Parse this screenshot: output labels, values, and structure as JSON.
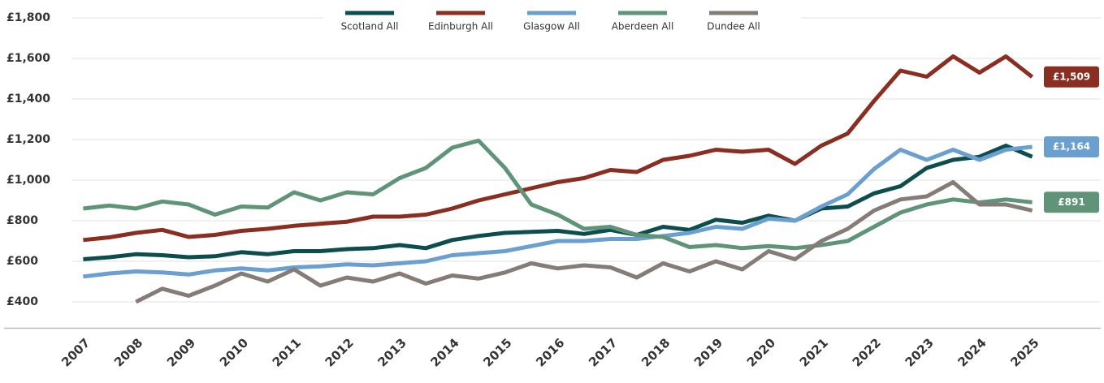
{
  "chart_data": {
    "type": "line",
    "x": [
      2007,
      2007.5,
      2008,
      2008.5,
      2009,
      2009.5,
      2010,
      2010.5,
      2011,
      2011.5,
      2012,
      2012.5,
      2013,
      2013.5,
      2014,
      2014.5,
      2015,
      2015.5,
      2016,
      2016.5,
      2017,
      2017.5,
      2018,
      2018.5,
      2019,
      2019.5,
      2020,
      2020.5,
      2021,
      2021.5,
      2022,
      2022.5,
      2023,
      2023.5,
      2024,
      2024.5,
      2025
    ],
    "series": [
      {
        "name": "Scotland All",
        "color": "#0d4d4d",
        "values": [
          610,
          620,
          635,
          630,
          620,
          625,
          645,
          635,
          650,
          650,
          660,
          665,
          680,
          665,
          705,
          725,
          740,
          745,
          750,
          735,
          755,
          730,
          770,
          755,
          805,
          790,
          825,
          800,
          860,
          870,
          935,
          970,
          1060,
          1100,
          1115,
          1170,
          1115
        ]
      },
      {
        "name": "Edinburgh All",
        "color": "#8b2e22",
        "end_label": "£1,509",
        "values": [
          705,
          718,
          740,
          755,
          720,
          730,
          750,
          760,
          775,
          785,
          795,
          820,
          820,
          830,
          860,
          900,
          930,
          960,
          990,
          1010,
          1050,
          1040,
          1100,
          1120,
          1150,
          1140,
          1150,
          1080,
          1170,
          1230,
          1390,
          1540,
          1510,
          1610,
          1530,
          1610,
          1509
        ]
      },
      {
        "name": "Glasgow All",
        "color": "#6a9fd0",
        "end_label": "£1,164",
        "values": [
          525,
          540,
          550,
          545,
          535,
          555,
          565,
          555,
          570,
          575,
          585,
          580,
          590,
          600,
          630,
          640,
          650,
          675,
          700,
          700,
          710,
          710,
          725,
          740,
          770,
          760,
          810,
          800,
          870,
          930,
          1055,
          1150,
          1100,
          1150,
          1100,
          1150,
          1164
        ]
      },
      {
        "name": "Aberdeen All",
        "color": "#5f9478",
        "end_label": "£891",
        "values": [
          860,
          875,
          860,
          895,
          880,
          830,
          870,
          865,
          940,
          900,
          940,
          930,
          1010,
          1060,
          1160,
          1195,
          1060,
          880,
          830,
          760,
          770,
          730,
          720,
          670,
          680,
          665,
          675,
          665,
          680,
          700,
          770,
          840,
          880,
          905,
          890,
          905,
          891
        ]
      },
      {
        "name": "Dundee All",
        "color": "#857c77",
        "values": [
          null,
          null,
          400,
          465,
          430,
          480,
          540,
          500,
          560,
          480,
          520,
          500,
          540,
          490,
          530,
          515,
          545,
          590,
          565,
          580,
          570,
          520,
          590,
          550,
          600,
          560,
          650,
          610,
          700,
          760,
          850,
          905,
          920,
          990,
          880,
          880,
          850
        ]
      }
    ],
    "xlim": [
      2005.5,
      2026.3
    ],
    "xticks": [
      2007,
      2008,
      2009,
      2010,
      2011,
      2012,
      2013,
      2014,
      2015,
      2016,
      2017,
      2018,
      2019,
      2020,
      2021,
      2022,
      2023,
      2024,
      2025
    ],
    "ylim": [
      270,
      1880
    ],
    "yticks": [
      {
        "value": 400,
        "label": "£400"
      },
      {
        "value": 600,
        "label": "£600"
      },
      {
        "value": 800,
        "label": "£800"
      },
      {
        "value": 1000,
        "label": "£1,000"
      },
      {
        "value": 1200,
        "label": "£1,200"
      },
      {
        "value": 1400,
        "label": "£1,400"
      },
      {
        "value": 1600,
        "label": "£1,600"
      },
      {
        "value": 1800,
        "label": "£1,800"
      }
    ],
    "grid": true,
    "legend": "top"
  }
}
